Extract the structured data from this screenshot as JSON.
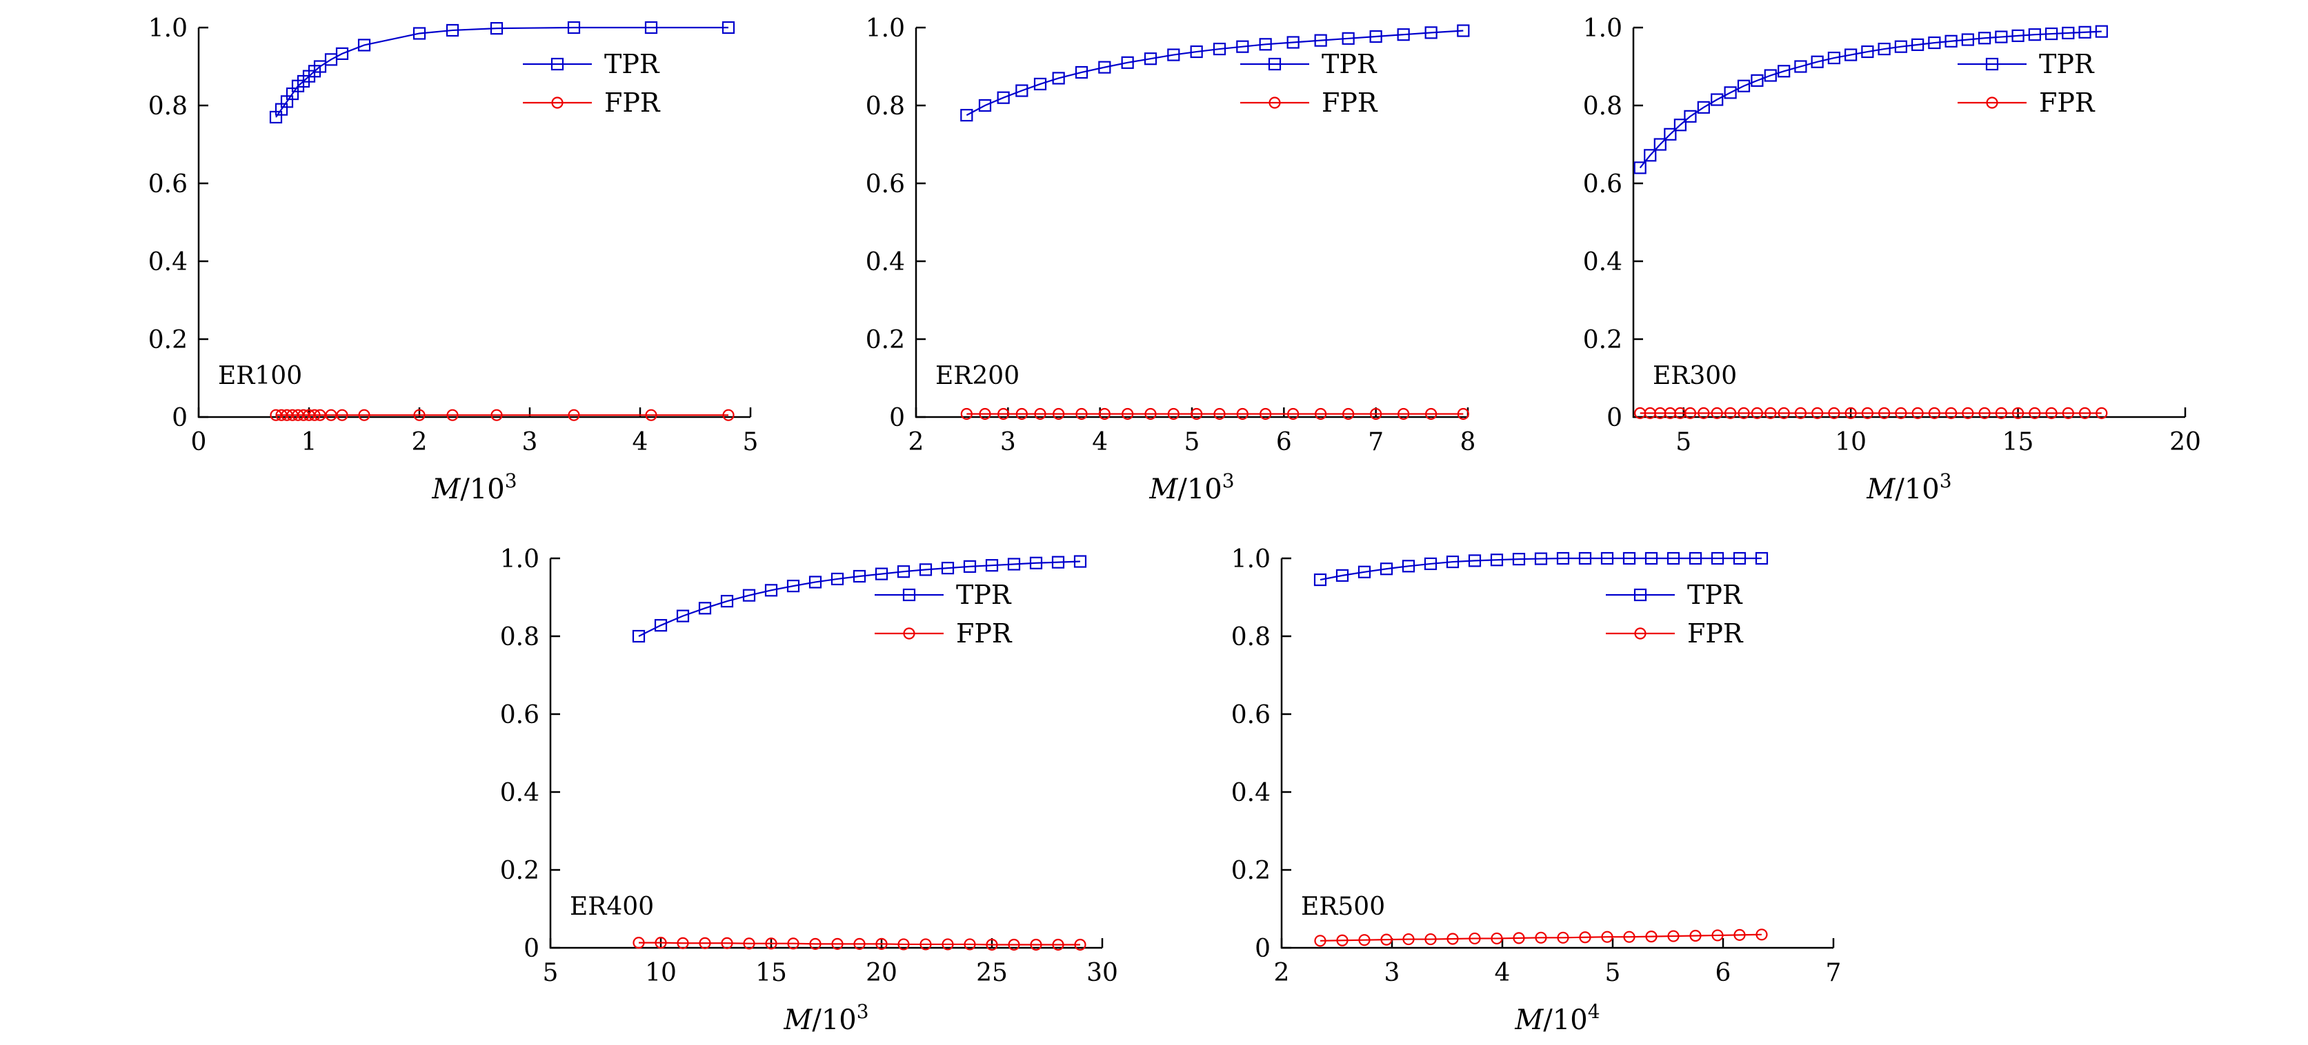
{
  "style": {
    "background": "#ffffff",
    "axis_color": "#000000",
    "text_color": "#000000",
    "tpr_color": "#0000cd",
    "fpr_color": "#ee0000"
  },
  "chart_data": [
    {
      "type": "line",
      "label": "ER100",
      "xlabel": {
        "var": "M",
        "rest": "/10",
        "sup": "3"
      },
      "xlim": [
        0,
        5
      ],
      "ylim": [
        0,
        1.0
      ],
      "xticks": [
        0,
        1,
        2,
        3,
        4,
        5
      ],
      "xtick_labels": [
        "0",
        "1",
        "2",
        "3",
        "4",
        "5"
      ],
      "yticks": [
        0,
        0.2,
        0.4,
        0.6,
        0.8,
        1.0
      ],
      "ytick_labels": [
        "0",
        "0.2",
        "0.4",
        "0.6",
        "0.8",
        "1.0"
      ],
      "legend_position": "top-right",
      "legend": [
        "TPR",
        "FPR"
      ],
      "series": [
        {
          "name": "TPR",
          "marker": "square",
          "color": "#0000cd",
          "x": [
            0.7,
            0.75,
            0.8,
            0.85,
            0.9,
            0.95,
            1.0,
            1.05,
            1.1,
            1.2,
            1.3,
            1.5,
            2.0,
            2.3,
            2.7,
            3.4,
            4.1,
            4.8
          ],
          "y": [
            0.77,
            0.79,
            0.81,
            0.83,
            0.85,
            0.862,
            0.875,
            0.888,
            0.9,
            0.918,
            0.933,
            0.955,
            0.985,
            0.993,
            0.998,
            1.0,
            1.0,
            1.0
          ]
        },
        {
          "name": "FPR",
          "marker": "circle",
          "color": "#ee0000",
          "x": [
            0.7,
            0.75,
            0.8,
            0.85,
            0.9,
            0.95,
            1.0,
            1.05,
            1.1,
            1.2,
            1.3,
            1.5,
            2.0,
            2.3,
            2.7,
            3.4,
            4.1,
            4.8
          ],
          "y": [
            0.005,
            0.005,
            0.005,
            0.005,
            0.005,
            0.005,
            0.005,
            0.005,
            0.005,
            0.005,
            0.005,
            0.005,
            0.005,
            0.005,
            0.005,
            0.005,
            0.005,
            0.005
          ]
        }
      ]
    },
    {
      "type": "line",
      "label": "ER200",
      "xlabel": {
        "var": "M",
        "rest": "/10",
        "sup": "3"
      },
      "xlim": [
        2,
        8
      ],
      "ylim": [
        0,
        1.0
      ],
      "xticks": [
        2,
        3,
        4,
        5,
        6,
        7,
        8
      ],
      "xtick_labels": [
        "2",
        "3",
        "4",
        "5",
        "6",
        "7",
        "8"
      ],
      "yticks": [
        0,
        0.2,
        0.4,
        0.6,
        0.8,
        1.0
      ],
      "ytick_labels": [
        "0",
        "0.2",
        "0.4",
        "0.6",
        "0.8",
        "1.0"
      ],
      "legend_position": "top-right",
      "legend": [
        "TPR",
        "FPR"
      ],
      "series": [
        {
          "name": "TPR",
          "marker": "square",
          "color": "#0000cd",
          "x": [
            2.55,
            2.75,
            2.95,
            3.15,
            3.35,
            3.55,
            3.8,
            4.05,
            4.3,
            4.55,
            4.8,
            5.05,
            5.3,
            5.55,
            5.8,
            6.1,
            6.4,
            6.7,
            7.0,
            7.3,
            7.6,
            7.95
          ],
          "y": [
            0.775,
            0.8,
            0.82,
            0.838,
            0.855,
            0.87,
            0.885,
            0.898,
            0.91,
            0.92,
            0.93,
            0.938,
            0.945,
            0.951,
            0.957,
            0.962,
            0.967,
            0.972,
            0.977,
            0.982,
            0.987,
            0.992
          ]
        },
        {
          "name": "FPR",
          "marker": "circle",
          "color": "#ee0000",
          "x": [
            2.55,
            2.75,
            2.95,
            3.15,
            3.35,
            3.55,
            3.8,
            4.05,
            4.3,
            4.55,
            4.8,
            5.05,
            5.3,
            5.55,
            5.8,
            6.1,
            6.4,
            6.7,
            7.0,
            7.3,
            7.6,
            7.95
          ],
          "y": [
            0.008,
            0.008,
            0.008,
            0.008,
            0.008,
            0.008,
            0.008,
            0.008,
            0.008,
            0.008,
            0.008,
            0.008,
            0.008,
            0.008,
            0.008,
            0.008,
            0.008,
            0.008,
            0.008,
            0.008,
            0.008,
            0.008
          ]
        }
      ]
    },
    {
      "type": "line",
      "label": "ER300",
      "xlabel": {
        "var": "M",
        "rest": "/10",
        "sup": "3"
      },
      "xlim": [
        3.5,
        20
      ],
      "ylim": [
        0,
        1.0
      ],
      "xticks": [
        5,
        10,
        15,
        20
      ],
      "xtick_labels": [
        "5",
        "10",
        "15",
        "20"
      ],
      "yticks": [
        0,
        0.2,
        0.4,
        0.6,
        0.8,
        1.0
      ],
      "ytick_labels": [
        "0",
        "0.2",
        "0.4",
        "0.6",
        "0.8",
        "1.0"
      ],
      "legend_position": "top-right",
      "legend": [
        "TPR",
        "FPR"
      ],
      "series": [
        {
          "name": "TPR",
          "marker": "square",
          "color": "#0000cd",
          "x": [
            3.7,
            4.0,
            4.3,
            4.6,
            4.9,
            5.2,
            5.6,
            6.0,
            6.4,
            6.8,
            7.2,
            7.6,
            8.0,
            8.5,
            9.0,
            9.5,
            10.0,
            10.5,
            11.0,
            11.5,
            12.0,
            12.5,
            13.0,
            13.5,
            14.0,
            14.5,
            15.0,
            15.5,
            16.0,
            16.5,
            17.0,
            17.5
          ],
          "y": [
            0.64,
            0.672,
            0.7,
            0.726,
            0.75,
            0.772,
            0.795,
            0.815,
            0.833,
            0.85,
            0.864,
            0.877,
            0.888,
            0.9,
            0.912,
            0.922,
            0.93,
            0.938,
            0.945,
            0.951,
            0.956,
            0.961,
            0.965,
            0.969,
            0.973,
            0.976,
            0.979,
            0.982,
            0.984,
            0.986,
            0.988,
            0.99
          ]
        },
        {
          "name": "FPR",
          "marker": "circle",
          "color": "#ee0000",
          "x": [
            3.7,
            4.0,
            4.3,
            4.6,
            4.9,
            5.2,
            5.6,
            6.0,
            6.4,
            6.8,
            7.2,
            7.6,
            8.0,
            8.5,
            9.0,
            9.5,
            10.0,
            10.5,
            11.0,
            11.5,
            12.0,
            12.5,
            13.0,
            13.5,
            14.0,
            14.5,
            15.0,
            15.5,
            16.0,
            16.5,
            17.0,
            17.5
          ],
          "y": [
            0.01,
            0.01,
            0.01,
            0.01,
            0.01,
            0.01,
            0.01,
            0.01,
            0.01,
            0.01,
            0.01,
            0.01,
            0.01,
            0.01,
            0.01,
            0.01,
            0.01,
            0.01,
            0.01,
            0.01,
            0.01,
            0.01,
            0.01,
            0.01,
            0.01,
            0.01,
            0.01,
            0.01,
            0.01,
            0.01,
            0.01,
            0.01
          ]
        }
      ]
    },
    {
      "type": "line",
      "label": "ER400",
      "xlabel": {
        "var": "M",
        "rest": "/10",
        "sup": "3"
      },
      "xlim": [
        5,
        30
      ],
      "ylim": [
        0,
        1.0
      ],
      "xticks": [
        5,
        10,
        15,
        20,
        25,
        30
      ],
      "xtick_labels": [
        "5",
        "10",
        "15",
        "20",
        "25",
        "30"
      ],
      "yticks": [
        0,
        0.2,
        0.4,
        0.6,
        0.8,
        1.0
      ],
      "ytick_labels": [
        "0",
        "0.2",
        "0.4",
        "0.6",
        "0.8",
        "1.0"
      ],
      "legend_position": "top-right",
      "legend": [
        "TPR",
        "FPR"
      ],
      "series": [
        {
          "name": "TPR",
          "marker": "square",
          "color": "#0000cd",
          "x": [
            9,
            10,
            11,
            12,
            13,
            14,
            15,
            16,
            17,
            18,
            19,
            20,
            21,
            22,
            23,
            24,
            25,
            26,
            27,
            28,
            29
          ],
          "y": [
            0.8,
            0.828,
            0.852,
            0.872,
            0.89,
            0.905,
            0.918,
            0.929,
            0.939,
            0.947,
            0.954,
            0.96,
            0.966,
            0.971,
            0.975,
            0.979,
            0.982,
            0.985,
            0.988,
            0.99,
            0.992
          ]
        },
        {
          "name": "FPR",
          "marker": "circle",
          "color": "#ee0000",
          "x": [
            9,
            10,
            11,
            12,
            13,
            14,
            15,
            16,
            17,
            18,
            19,
            20,
            21,
            22,
            23,
            24,
            25,
            26,
            27,
            28,
            29
          ],
          "y": [
            0.013,
            0.013,
            0.012,
            0.012,
            0.012,
            0.011,
            0.011,
            0.011,
            0.01,
            0.01,
            0.01,
            0.01,
            0.009,
            0.009,
            0.009,
            0.009,
            0.008,
            0.008,
            0.008,
            0.008,
            0.008
          ]
        }
      ]
    },
    {
      "type": "line",
      "label": "ER500",
      "xlabel": {
        "var": "M",
        "rest": "/10",
        "sup": "4"
      },
      "xlim": [
        2,
        7
      ],
      "ylim": [
        0,
        1.0
      ],
      "xticks": [
        2,
        3,
        4,
        5,
        6,
        7
      ],
      "xtick_labels": [
        "2",
        "3",
        "4",
        "5",
        "6",
        "7"
      ],
      "yticks": [
        0,
        0.2,
        0.4,
        0.6,
        0.8,
        1.0
      ],
      "ytick_labels": [
        "0",
        "0.2",
        "0.4",
        "0.6",
        "0.8",
        "1.0"
      ],
      "legend_position": "top-right",
      "legend": [
        "TPR",
        "FPR"
      ],
      "series": [
        {
          "name": "TPR",
          "marker": "square",
          "color": "#0000cd",
          "x": [
            2.35,
            2.55,
            2.75,
            2.95,
            3.15,
            3.35,
            3.55,
            3.75,
            3.95,
            4.15,
            4.35,
            4.55,
            4.75,
            4.95,
            5.15,
            5.35,
            5.55,
            5.75,
            5.95,
            6.15,
            6.35
          ],
          "y": [
            0.945,
            0.956,
            0.965,
            0.973,
            0.98,
            0.986,
            0.991,
            0.994,
            0.996,
            0.998,
            0.999,
            1.0,
            1.0,
            1.0,
            1.0,
            1.0,
            1.0,
            1.0,
            1.0,
            1.0,
            1.0
          ]
        },
        {
          "name": "FPR",
          "marker": "circle",
          "color": "#ee0000",
          "x": [
            2.35,
            2.55,
            2.75,
            2.95,
            3.15,
            3.35,
            3.55,
            3.75,
            3.95,
            4.15,
            4.35,
            4.55,
            4.75,
            4.95,
            5.15,
            5.35,
            5.55,
            5.75,
            5.95,
            6.15,
            6.35
          ],
          "y": [
            0.018,
            0.019,
            0.02,
            0.021,
            0.022,
            0.022,
            0.023,
            0.024,
            0.024,
            0.025,
            0.026,
            0.026,
            0.027,
            0.028,
            0.028,
            0.029,
            0.03,
            0.031,
            0.032,
            0.033,
            0.034
          ]
        }
      ]
    }
  ]
}
